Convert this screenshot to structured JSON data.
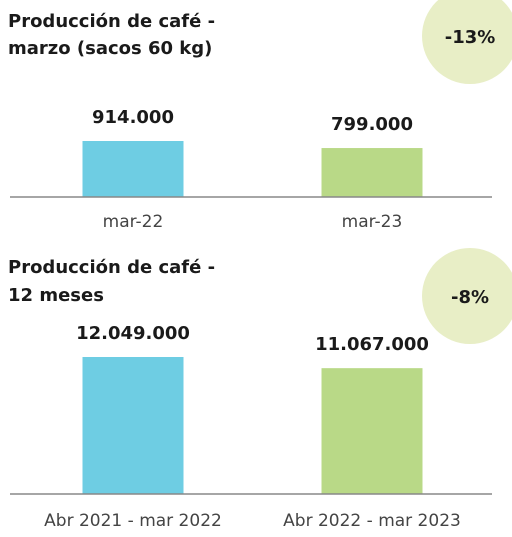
{
  "chart_data": [
    {
      "type": "bar",
      "title": [
        "Producción de café -",
        "marzo (sacos 60 kg)"
      ],
      "categories": [
        "mar-22",
        "mar-23"
      ],
      "values": [
        914000,
        799000
      ],
      "value_labels": [
        "914.000",
        "799.000"
      ],
      "colors": [
        "#6ecde3",
        "#b9d987"
      ],
      "annotation": "-13%"
    },
    {
      "type": "bar",
      "title": [
        "Producción de café -",
        "12 meses"
      ],
      "categories": [
        "Abr 2021 - mar 2022",
        "Abr 2022 - mar 2023"
      ],
      "values": [
        12049000,
        11067000
      ],
      "value_labels": [
        "12.049.000",
        "11.067.000"
      ],
      "colors": [
        "#6ecde3",
        "#b9d987"
      ],
      "annotation": "-8%"
    }
  ]
}
